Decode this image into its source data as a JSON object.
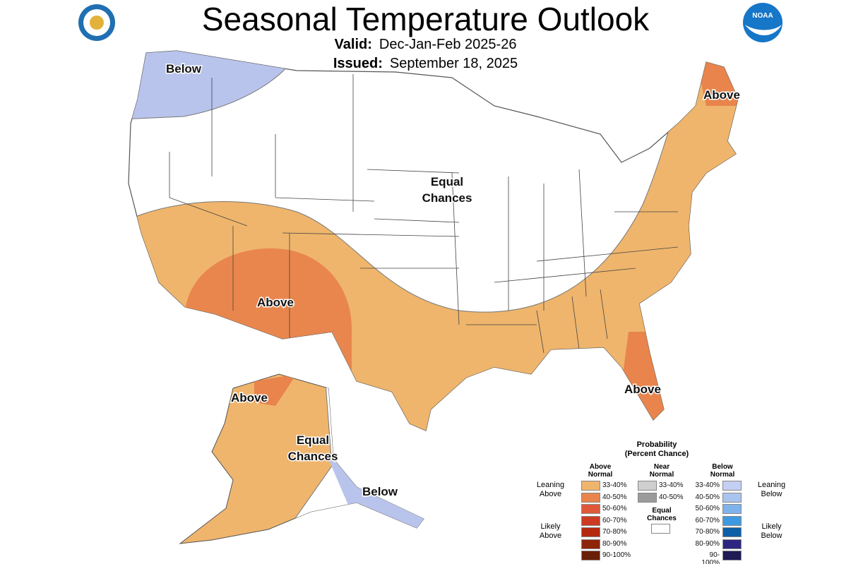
{
  "title": "Seasonal Temperature Outlook",
  "valid_label": "Valid:",
  "valid_value": "Dec-Jan-Feb 2025-26",
  "issued_label": "Issued:",
  "issued_value": "September 18, 2025",
  "logos": {
    "left": "Department of Commerce seal",
    "right": "NOAA"
  },
  "map_labels": {
    "nw": "Below",
    "ne": "Above",
    "center_1": "Equal",
    "center_2": "Chances",
    "sw": "Above",
    "fl": "Above",
    "ak_north": "Above",
    "ak_center_1": "Equal",
    "ak_center_2": "Chances",
    "ak_se": "Below"
  },
  "legend": {
    "title_1": "Probability",
    "title_2": "(Percent Chance)",
    "above_header": [
      "Above",
      "Normal"
    ],
    "near_header": [
      "Near",
      "Normal"
    ],
    "below_header": [
      "Below",
      "Normal"
    ],
    "leaning_above": [
      "Leaning",
      "Above"
    ],
    "likely_above": [
      "Likely",
      "Above"
    ],
    "leaning_below": [
      "Leaning",
      "Below"
    ],
    "likely_below": [
      "Likely",
      "Below"
    ],
    "equal_chances": [
      "Equal",
      "Chances"
    ],
    "above": [
      {
        "range": "33-40%",
        "color": "#efb56c"
      },
      {
        "range": "40-50%",
        "color": "#e8844c"
      },
      {
        "range": "50-60%",
        "color": "#e0583a"
      },
      {
        "range": "60-70%",
        "color": "#cc3a22"
      },
      {
        "range": "70-80%",
        "color": "#b42a10"
      },
      {
        "range": "80-90%",
        "color": "#8e2408"
      },
      {
        "range": "90-100%",
        "color": "#6a1e06"
      }
    ],
    "near": [
      {
        "range": "33-40%",
        "color": "#cfcfcf"
      },
      {
        "range": "40-50%",
        "color": "#9b9b9b"
      }
    ],
    "below": [
      {
        "range": "33-40%",
        "color": "#c4cff4"
      },
      {
        "range": "40-50%",
        "color": "#a9c4ee"
      },
      {
        "range": "50-60%",
        "color": "#7fb3ec"
      },
      {
        "range": "60-70%",
        "color": "#3d9ae0"
      },
      {
        "range": "70-80%",
        "color": "#0e5fa8"
      },
      {
        "range": "80-90%",
        "color": "#2e2580"
      },
      {
        "range": "90-100%",
        "color": "#201a55"
      }
    ]
  }
}
